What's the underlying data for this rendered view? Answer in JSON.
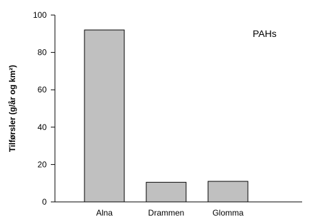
{
  "chart_data": {
    "type": "bar",
    "categories": [
      "Alna",
      "Drammen",
      "Glomma"
    ],
    "values": [
      92,
      10.5,
      11
    ],
    "ylabel": "Tilførsler (g/år og km²)",
    "xlabel": "",
    "annotation": "PAHs",
    "ylim": [
      0,
      100
    ],
    "yticks": [
      0,
      20,
      40,
      60,
      80,
      100
    ],
    "legend": "none",
    "grid": false,
    "colors": {
      "bar_fill": "#c0c0c0",
      "bar_stroke": "#000000",
      "axis": "#000000"
    }
  }
}
